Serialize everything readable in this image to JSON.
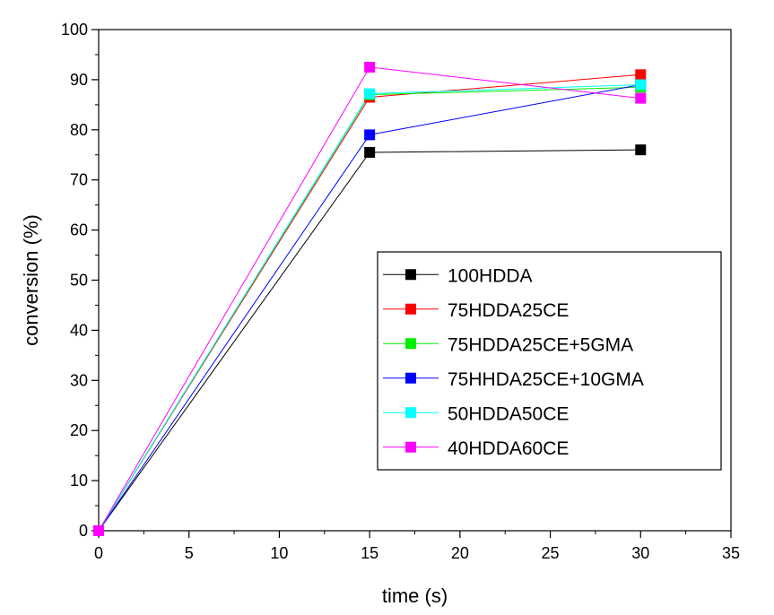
{
  "chart_data": {
    "type": "line",
    "xlabel": "time (s)",
    "ylabel": "conversion (%)",
    "xlim": [
      0,
      35
    ],
    "ylim": [
      0,
      100
    ],
    "xticks": [
      0,
      5,
      10,
      15,
      20,
      25,
      30,
      35
    ],
    "yticks": [
      0,
      10,
      20,
      30,
      40,
      50,
      60,
      70,
      80,
      90,
      100
    ],
    "grid": false,
    "legend_position": "center-right",
    "x": [
      0,
      15,
      30
    ],
    "series": [
      {
        "name": "100HDDA",
        "color": "#000000",
        "values": [
          0,
          75.5,
          76
        ]
      },
      {
        "name": "75HDDA25CE",
        "color": "#ff0000",
        "values": [
          0,
          86.5,
          91
        ]
      },
      {
        "name": "75HDDA25CE+5GMA",
        "color": "#00ee00",
        "values": [
          0,
          87,
          88.5
        ]
      },
      {
        "name": "75HHDA25CE+10GMA",
        "color": "#0000ff",
        "values": [
          0,
          79,
          89
        ]
      },
      {
        "name": "50HDDA50CE",
        "color": "#00ffff",
        "values": [
          0,
          87.2,
          89
        ]
      },
      {
        "name": "40HDDA60CE",
        "color": "#ff00ff",
        "values": [
          0,
          92.5,
          86.3
        ]
      }
    ]
  }
}
